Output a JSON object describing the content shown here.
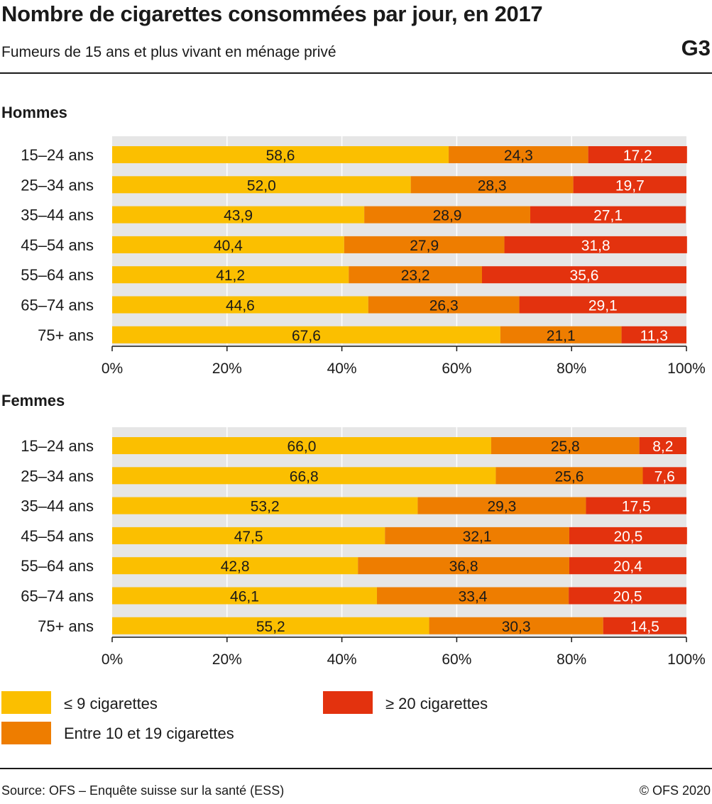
{
  "header": {
    "title": "Nombre de cigarettes consommées par jour, en 2017",
    "subtitle": "Fumeurs de 15 ans et plus vivant en ménage privé",
    "code": "G3"
  },
  "colors": {
    "low": "#FBBF00",
    "mid": "#EE7D00",
    "high": "#E3320E",
    "plot_bg": "#E6E6E6",
    "grid": "#FFFFFF"
  },
  "chart_data": [
    {
      "type": "bar",
      "orientation": "horizontal",
      "stacked": true,
      "title": "Hommes",
      "categories": [
        "15–24 ans",
        "25–34 ans",
        "35–44 ans",
        "45–54 ans",
        "55–64 ans",
        "65–74 ans",
        "75+ ans"
      ],
      "series": [
        {
          "name": "≤ 9 cigarettes",
          "values": [
            58.6,
            52.0,
            43.9,
            40.4,
            41.2,
            44.6,
            67.6
          ],
          "labels": [
            "58,6",
            "52,0",
            "43,9",
            "40,4",
            "41,2",
            "44,6",
            "67,6"
          ]
        },
        {
          "name": "Entre 10 et 19 cigarettes",
          "values": [
            24.3,
            28.3,
            28.9,
            27.9,
            23.2,
            26.3,
            21.1
          ],
          "labels": [
            "24,3",
            "28,3",
            "28,9",
            "27,9",
            "23,2",
            "26,3",
            "21,1"
          ]
        },
        {
          "name": "≥ 20 cigarettes",
          "values": [
            17.2,
            19.7,
            27.1,
            31.8,
            35.6,
            29.1,
            11.3
          ],
          "labels": [
            "17,2",
            "19,7",
            "27,1",
            "31,8",
            "35,6",
            "29,1",
            "11,3"
          ]
        }
      ],
      "xlim": [
        0,
        100
      ],
      "xticks": [
        "0%",
        "20%",
        "40%",
        "60%",
        "80%",
        "100%"
      ],
      "grid": true
    },
    {
      "type": "bar",
      "orientation": "horizontal",
      "stacked": true,
      "title": "Femmes",
      "categories": [
        "15–24 ans",
        "25–34 ans",
        "35–44 ans",
        "45–54 ans",
        "55–64 ans",
        "65–74 ans",
        "75+ ans"
      ],
      "series": [
        {
          "name": "≤ 9 cigarettes",
          "values": [
            66.0,
            66.8,
            53.2,
            47.5,
            42.8,
            46.1,
            55.2
          ],
          "labels": [
            "66,0",
            "66,8",
            "53,2",
            "47,5",
            "42,8",
            "46,1",
            "55,2"
          ]
        },
        {
          "name": "Entre 10 et 19 cigarettes",
          "values": [
            25.8,
            25.6,
            29.3,
            32.1,
            36.8,
            33.4,
            30.3
          ],
          "labels": [
            "25,8",
            "25,6",
            "29,3",
            "32,1",
            "36,8",
            "33,4",
            "30,3"
          ]
        },
        {
          "name": "≥ 20 cigarettes",
          "values": [
            8.2,
            7.6,
            17.5,
            20.5,
            20.4,
            20.5,
            14.5
          ],
          "labels": [
            "8,2",
            "7,6",
            "17,5",
            "20,5",
            "20,4",
            "20,5",
            "14,5"
          ]
        }
      ],
      "xlim": [
        0,
        100
      ],
      "xticks": [
        "0%",
        "20%",
        "40%",
        "60%",
        "80%",
        "100%"
      ],
      "grid": true
    }
  ],
  "legend": {
    "low": "≤ 9 cigarettes",
    "mid": "Entre 10 et 19 cigarettes",
    "high": "≥ 20 cigarettes"
  },
  "footer": {
    "source": "Source: OFS – Enquête suisse sur la santé (ESS)",
    "copyright": "© OFS 2020"
  }
}
